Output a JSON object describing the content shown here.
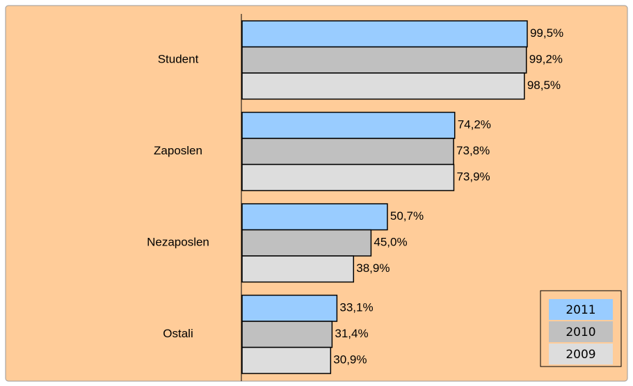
{
  "chart_data": {
    "type": "hbar",
    "categories": [
      "Student",
      "Zaposlen",
      "Nezaposlen",
      "Ostali"
    ],
    "series": [
      {
        "name": "2011",
        "color": "#99ccff",
        "values": [
          99.5,
          74.2,
          50.7,
          33.1
        ],
        "value_labels": [
          "99,5%",
          "74,2%",
          "50,7%",
          "33,1%"
        ]
      },
      {
        "name": "2010",
        "color": "#c0c0c0",
        "values": [
          99.2,
          73.8,
          45.0,
          31.4
        ],
        "value_labels": [
          "99,2%",
          "73,8%",
          "45,0%",
          "31,4%"
        ]
      },
      {
        "name": "2009",
        "color": "#dddddd",
        "values": [
          98.5,
          73.9,
          38.9,
          30.9
        ],
        "value_labels": [
          "98,5%",
          "73,9%",
          "38,9%",
          "30,9%"
        ]
      }
    ],
    "xlim": [
      0,
      100
    ],
    "legend": "bottom-right"
  }
}
